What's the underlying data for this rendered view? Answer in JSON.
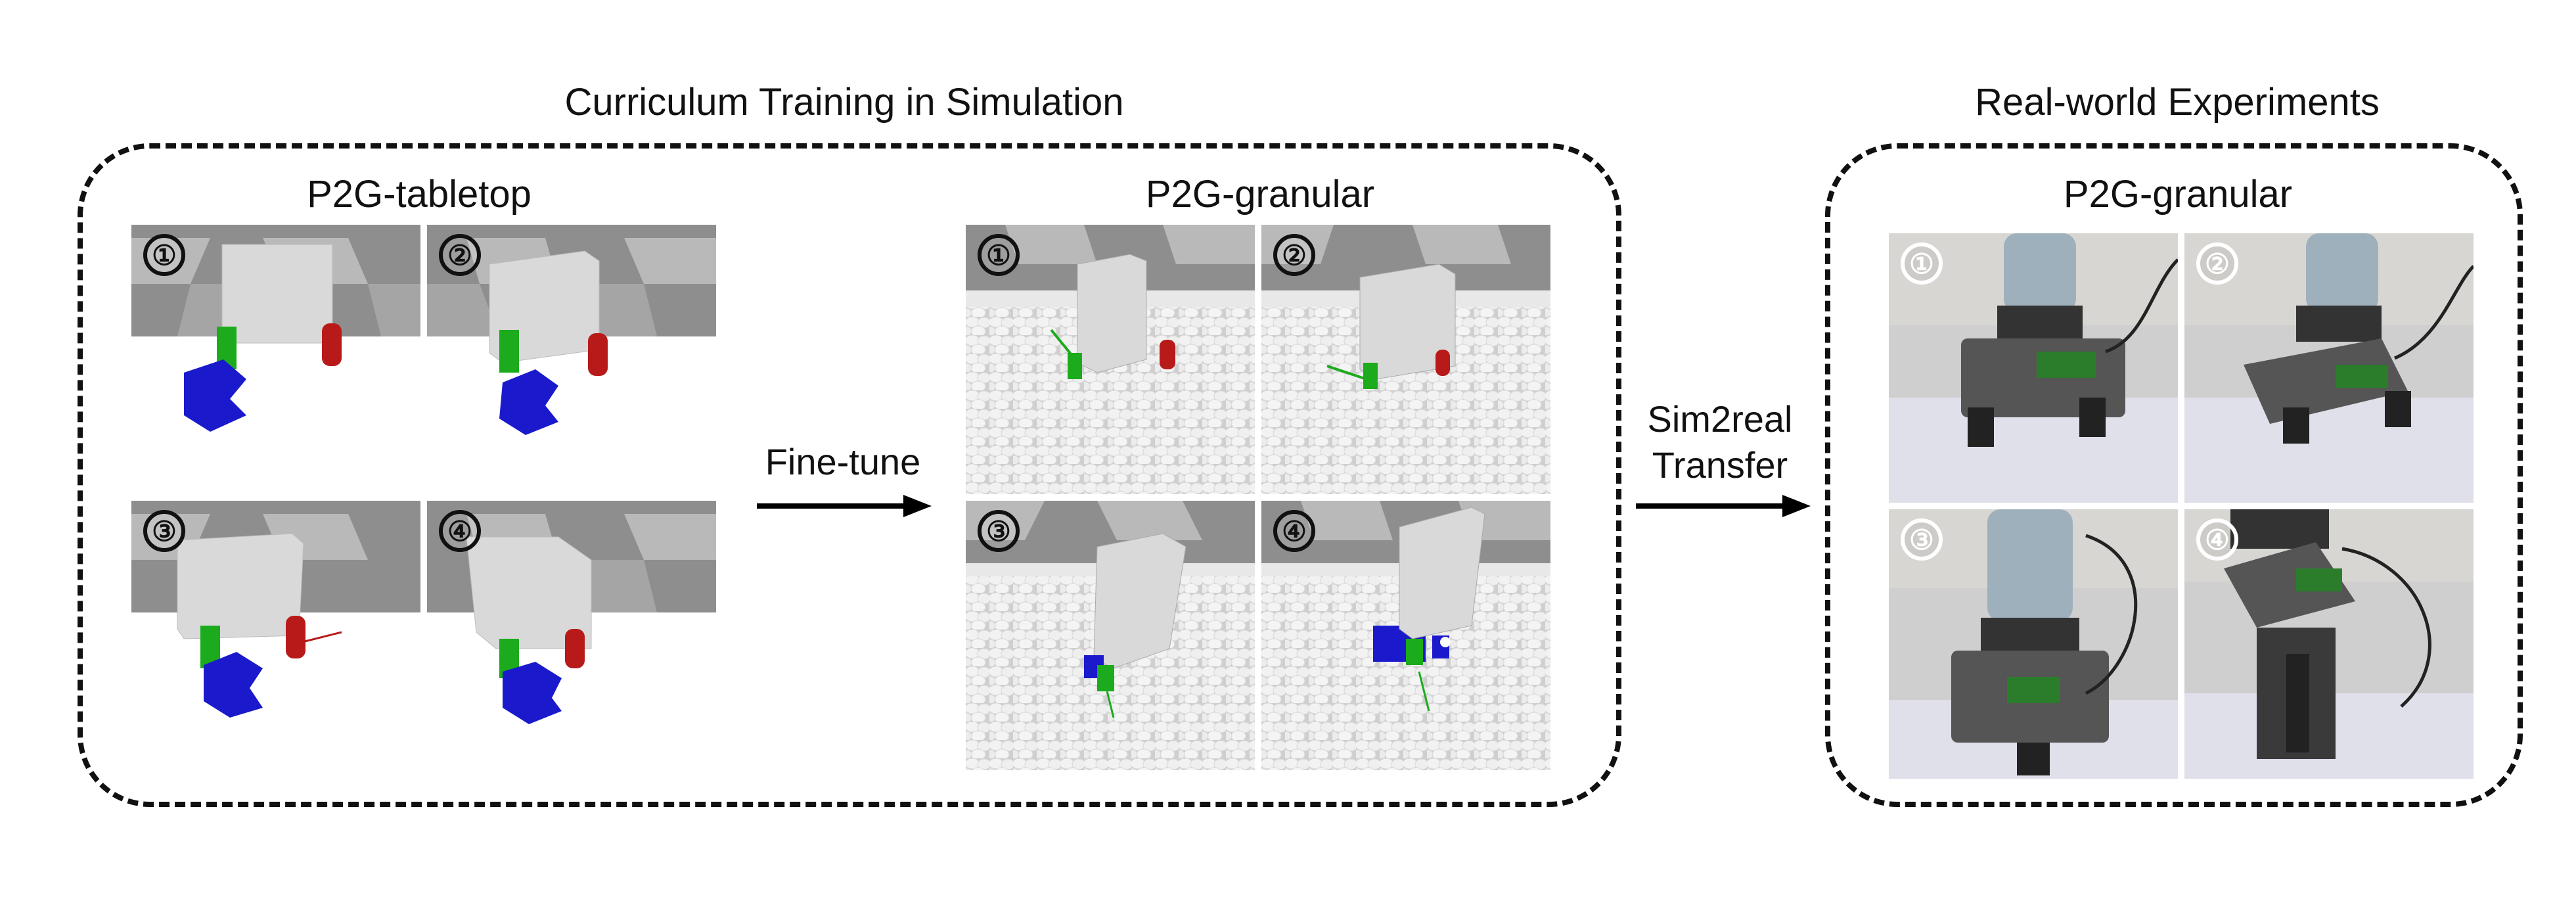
{
  "curriculum": {
    "title": "Curriculum Training in Simulation",
    "tabletop": {
      "title": "P2G-tabletop",
      "panels": [
        {
          "step": "①"
        },
        {
          "step": "②"
        },
        {
          "step": "③"
        },
        {
          "step": "④"
        }
      ]
    },
    "granular": {
      "title": "P2G-granular",
      "panels": [
        {
          "step": "①"
        },
        {
          "step": "②"
        },
        {
          "step": "③"
        },
        {
          "step": "④"
        }
      ]
    }
  },
  "realworld": {
    "title": "Real-world Experiments",
    "granular": {
      "title": "P2G-granular",
      "panels": [
        {
          "step": "①"
        },
        {
          "step": "②"
        },
        {
          "step": "③"
        },
        {
          "step": "④"
        }
      ]
    }
  },
  "arrows": {
    "finetune": {
      "label": "Fine-tune"
    },
    "sim2real": {
      "line1": "Sim2real",
      "line2": "Transfer"
    }
  },
  "colors": {
    "floor_dark": "#8e8e8e",
    "floor_light": "#b9b9b9",
    "box": "#d9d9d9",
    "blue_block": "#1a1acc",
    "green_finger": "#1cab1c",
    "red_finger": "#b81a1a",
    "pebble": "#f2f2f2"
  }
}
